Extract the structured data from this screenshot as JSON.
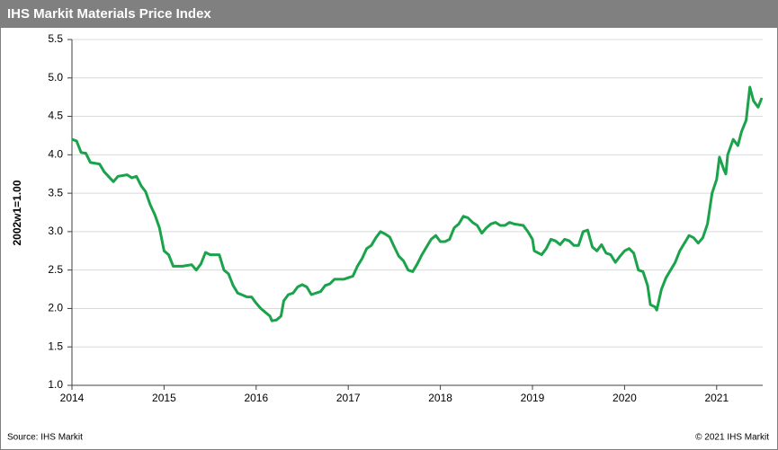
{
  "chart_data": {
    "type": "line",
    "title": "IHS Markit Materials Price Index",
    "y_label": "2002w1=1.00",
    "source": "Source:  IHS Markit",
    "copyright": "© 2021  IHS Markit",
    "xlim": [
      2014,
      2021.5
    ],
    "xticks": [
      2014,
      2015,
      2016,
      2017,
      2018,
      2019,
      2020,
      2021
    ],
    "ylim": [
      1.0,
      5.5
    ],
    "yticks": [
      {
        "value": 1.0,
        "label": "1.0"
      },
      {
        "value": 1.5,
        "label": "1.5"
      },
      {
        "value": 2.0,
        "label": "2.0"
      },
      {
        "value": 2.5,
        "label": "2.5"
      },
      {
        "value": 3.0,
        "label": "3.0"
      },
      {
        "value": 3.5,
        "label": "3.5"
      },
      {
        "value": 4.0,
        "label": "4.0"
      },
      {
        "value": 4.5,
        "label": "4.5"
      },
      {
        "value": 5.0,
        "label": "5.0"
      },
      {
        "value": 5.5,
        "label": "5.5"
      }
    ],
    "grid": true,
    "series": [
      {
        "color": "#1aa34a",
        "x": [
          2014.0,
          2014.05,
          2014.1,
          2014.15,
          2014.2,
          2014.3,
          2014.35,
          2014.45,
          2014.5,
          2014.6,
          2014.65,
          2014.7,
          2014.75,
          2014.8,
          2014.85,
          2014.9,
          2014.95,
          2015.0,
          2015.05,
          2015.1,
          2015.2,
          2015.3,
          2015.35,
          2015.4,
          2015.45,
          2015.5,
          2015.6,
          2015.65,
          2015.7,
          2015.75,
          2015.8,
          2015.9,
          2015.95,
          2016.0,
          2016.05,
          2016.1,
          2016.15,
          2016.17,
          2016.22,
          2016.27,
          2016.3,
          2016.35,
          2016.4,
          2016.45,
          2016.5,
          2016.55,
          2016.6,
          2016.7,
          2016.75,
          2016.8,
          2016.85,
          2016.95,
          2017.0,
          2017.05,
          2017.1,
          2017.15,
          2017.2,
          2017.25,
          2017.3,
          2017.35,
          2017.4,
          2017.45,
          2017.5,
          2017.55,
          2017.6,
          2017.65,
          2017.7,
          2017.75,
          2017.8,
          2017.85,
          2017.9,
          2017.95,
          2018.0,
          2018.05,
          2018.1,
          2018.15,
          2018.2,
          2018.25,
          2018.3,
          2018.35,
          2018.4,
          2018.45,
          2018.5,
          2018.55,
          2018.6,
          2018.65,
          2018.7,
          2018.75,
          2018.8,
          2018.9,
          2018.95,
          2019.0,
          2019.02,
          2019.1,
          2019.15,
          2019.2,
          2019.25,
          2019.3,
          2019.35,
          2019.4,
          2019.45,
          2019.5,
          2019.55,
          2019.6,
          2019.65,
          2019.7,
          2019.75,
          2019.8,
          2019.85,
          2019.9,
          2019.95,
          2020.0,
          2020.05,
          2020.1,
          2020.15,
          2020.2,
          2020.25,
          2020.28,
          2020.33,
          2020.35,
          2020.4,
          2020.45,
          2020.5,
          2020.55,
          2020.6,
          2020.65,
          2020.7,
          2020.75,
          2020.8,
          2020.85,
          2020.9,
          2020.95,
          2021.0,
          2021.03,
          2021.08,
          2021.1,
          2021.12,
          2021.18,
          2021.23,
          2021.27,
          2021.32,
          2021.36,
          2021.4,
          2021.45,
          2021.49
        ],
        "values": [
          4.2,
          4.18,
          4.03,
          4.02,
          3.9,
          3.88,
          3.78,
          3.65,
          3.72,
          3.74,
          3.7,
          3.72,
          3.6,
          3.52,
          3.35,
          3.22,
          3.05,
          2.75,
          2.7,
          2.55,
          2.55,
          2.57,
          2.5,
          2.58,
          2.73,
          2.7,
          2.7,
          2.5,
          2.45,
          2.3,
          2.2,
          2.15,
          2.15,
          2.07,
          2.0,
          1.95,
          1.9,
          1.84,
          1.85,
          1.9,
          2.1,
          2.18,
          2.2,
          2.28,
          2.31,
          2.28,
          2.18,
          2.22,
          2.3,
          2.32,
          2.38,
          2.38,
          2.4,
          2.42,
          2.55,
          2.65,
          2.78,
          2.82,
          2.92,
          3.0,
          2.97,
          2.93,
          2.8,
          2.68,
          2.62,
          2.5,
          2.48,
          2.58,
          2.7,
          2.8,
          2.9,
          2.95,
          2.87,
          2.87,
          2.9,
          3.05,
          3.1,
          3.2,
          3.18,
          3.12,
          3.08,
          2.98,
          3.05,
          3.1,
          3.12,
          3.08,
          3.08,
          3.12,
          3.1,
          3.08,
          3.0,
          2.9,
          2.75,
          2.7,
          2.78,
          2.9,
          2.88,
          2.83,
          2.9,
          2.88,
          2.82,
          2.82,
          3.0,
          3.02,
          2.8,
          2.75,
          2.83,
          2.72,
          2.7,
          2.6,
          2.68,
          2.75,
          2.78,
          2.72,
          2.5,
          2.48,
          2.3,
          2.05,
          2.02,
          1.98,
          2.25,
          2.4,
          2.5,
          2.6,
          2.75,
          2.85,
          2.95,
          2.92,
          2.85,
          2.92,
          3.1,
          3.5,
          3.68,
          3.97,
          3.8,
          3.75,
          4.0,
          4.2,
          4.12,
          4.3,
          4.45,
          4.88,
          4.7,
          4.62,
          4.74
        ]
      }
    ]
  }
}
